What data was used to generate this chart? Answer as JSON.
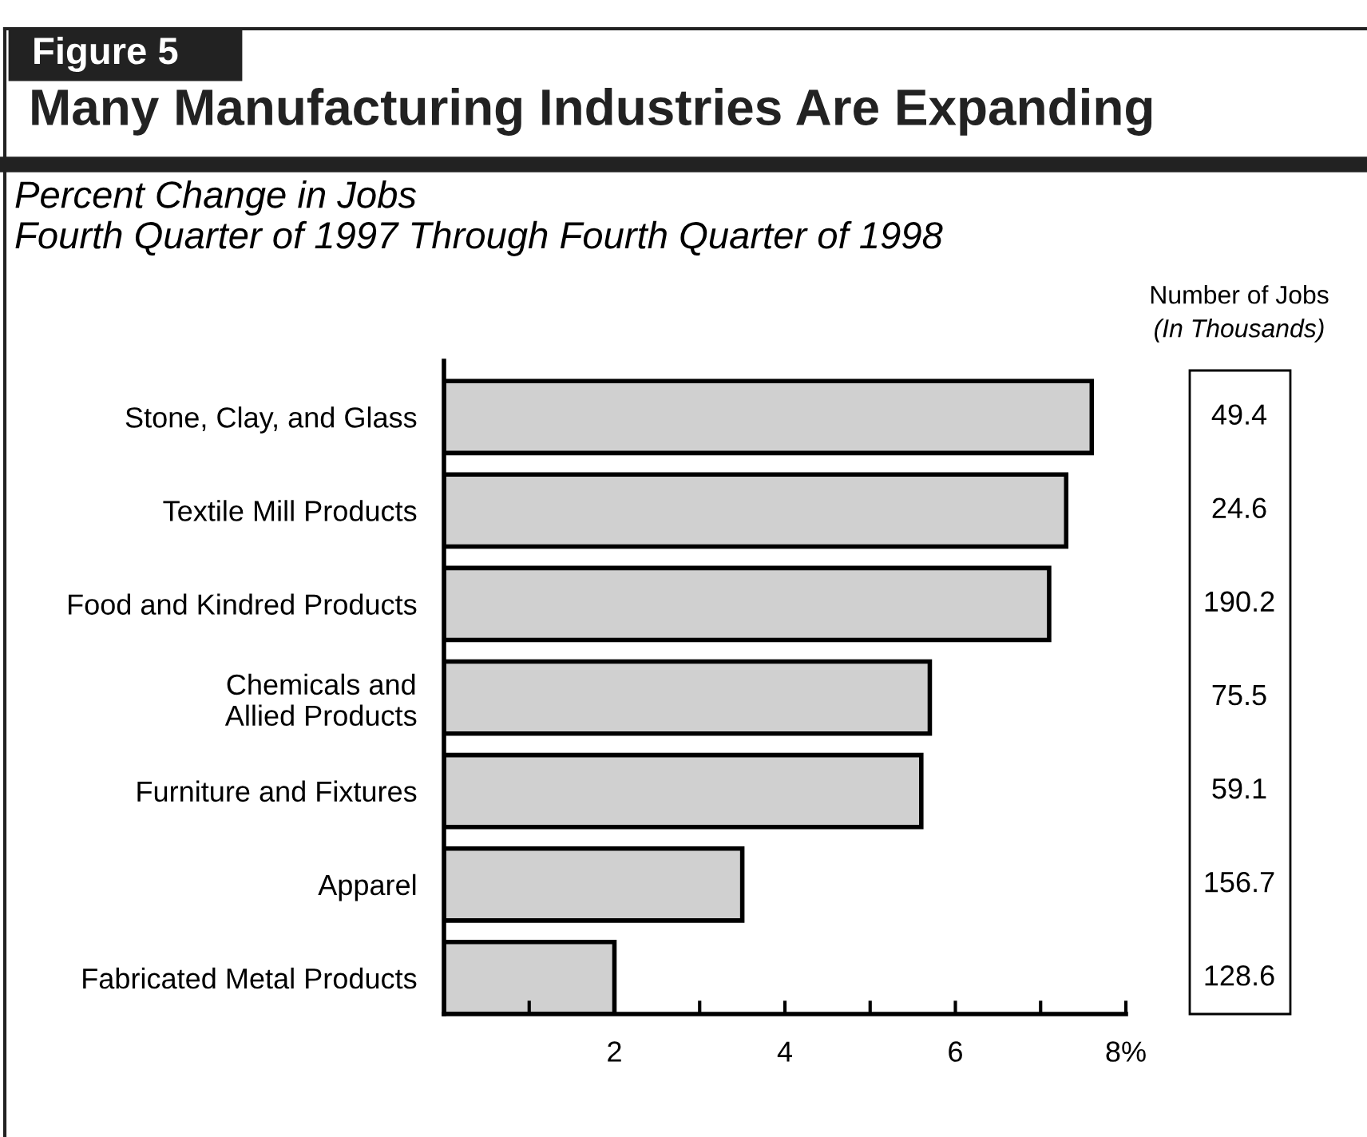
{
  "chart_data": {
    "type": "bar",
    "orientation": "horizontal",
    "title": "Many Manufacturing Industries Are Expanding",
    "subtitle": "Percent Change in Jobs\nFourth Quarter of 1997 Through Fourth Quarter of 1998",
    "categories": [
      "Stone, Clay, and Glass",
      "Textile Mill Products",
      "Food and Kindred Products",
      "Chemicals and\nAllied Products",
      "Furniture and Fixtures",
      "Apparel",
      "Fabricated Metal Products"
    ],
    "values": [
      7.6,
      7.3,
      7.1,
      5.7,
      5.6,
      3.5,
      2.0
    ],
    "color": "#d0d0d0",
    "xlim": [
      0,
      8
    ],
    "xticks": [
      {
        "value": 0,
        "label": null
      },
      {
        "value": 1,
        "label": null
      },
      2,
      {
        "value": 3,
        "label": null
      },
      4,
      {
        "value": 5,
        "label": null
      },
      6,
      {
        "value": 7,
        "label": null
      },
      {
        "value": 8,
        "label": "8%"
      }
    ],
    "grid": false,
    "legend": false,
    "annotations": [
      "Figure 5",
      "Number of Jobs",
      "(In Thousands)",
      "49.4",
      "24.6",
      "190.2",
      "75.5",
      "59.1",
      "156.7",
      "128.6"
    ]
  }
}
